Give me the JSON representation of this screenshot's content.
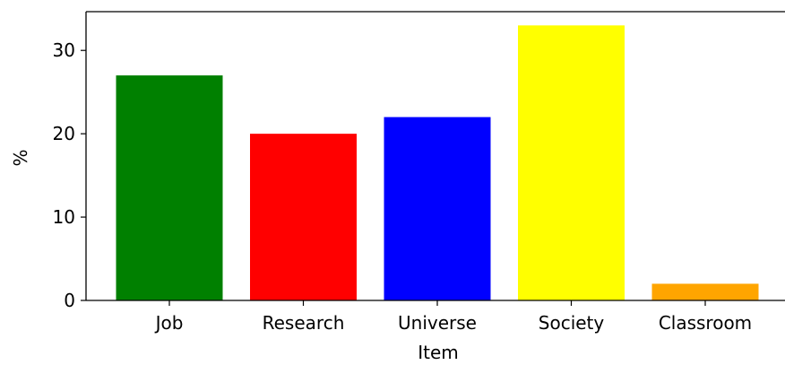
{
  "chart_data": {
    "type": "bar",
    "categories": [
      "Job",
      "Research",
      "Universe",
      "Society",
      "Classroom"
    ],
    "values": [
      27,
      20,
      22,
      33,
      2
    ],
    "colors": [
      "#008000",
      "#ff0000",
      "#0000ff",
      "#ffff00",
      "#ffa500"
    ],
    "title": "",
    "xlabel": "Item",
    "ylabel": "%",
    "ylim": [
      0,
      34.65
    ],
    "yticks": [
      0,
      10,
      20,
      30
    ],
    "grid": false,
    "legend": "none"
  }
}
